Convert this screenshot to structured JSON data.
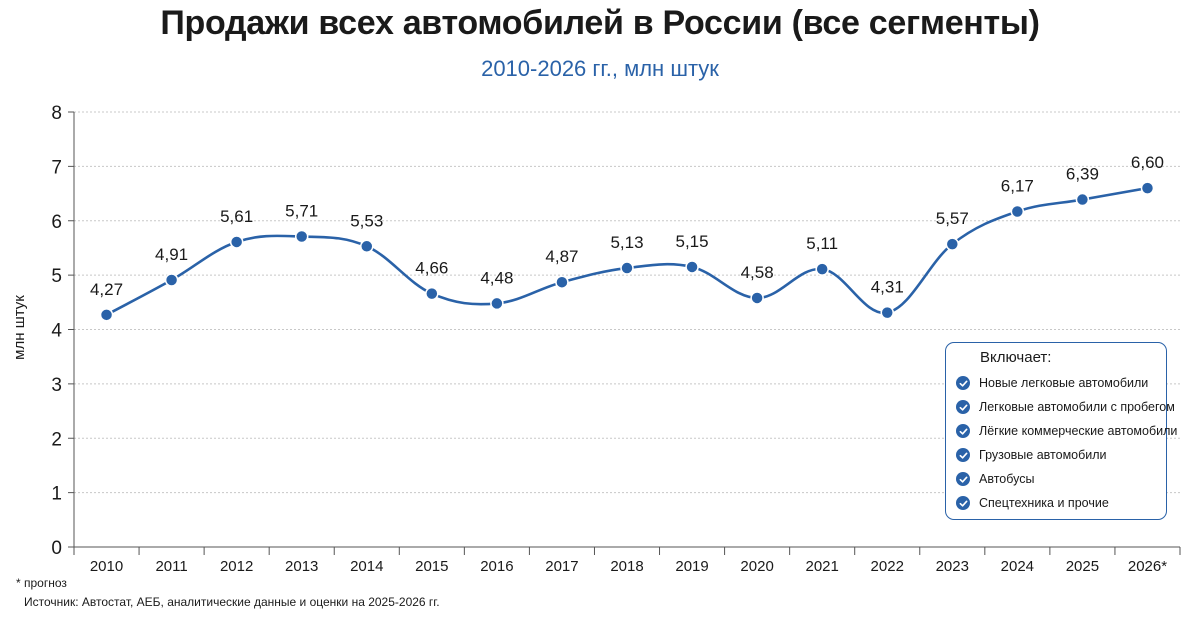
{
  "chart_data": {
    "type": "line",
    "title": "Продажи всех автомобилей в России (все сегменты)",
    "subtitle": "2010-2026 гг., млн штук",
    "ylabel": "млн штук",
    "xlabel": "",
    "ylim": [
      0,
      8
    ],
    "yticks": [
      "0",
      "1",
      "2",
      "3",
      "4",
      "5",
      "6",
      "7",
      "8"
    ],
    "grid": true,
    "categories": [
      "2010",
      "2011",
      "2012",
      "2013",
      "2014",
      "2015",
      "2016",
      "2017",
      "2018",
      "2019",
      "2020",
      "2021",
      "2022",
      "2023",
      "2024",
      "2025",
      "2026*"
    ],
    "values": [
      4.27,
      4.91,
      5.61,
      5.71,
      5.53,
      4.66,
      4.48,
      4.87,
      5.13,
      5.15,
      4.58,
      5.11,
      4.31,
      5.57,
      6.17,
      6.39,
      6.6
    ],
    "labels": [
      "4,27",
      "4,91",
      "5,61",
      "5,71",
      "5,53",
      "4,66",
      "4,48",
      "4,87",
      "5,13",
      "5,15",
      "4,58",
      "5,11",
      "4,31",
      "5,57",
      "6,17",
      "6,39",
      "6,60"
    ],
    "colors": {
      "line": "#2a62a8",
      "marker": "#2a62a8",
      "grid": "#c8c8c8"
    }
  },
  "legend": {
    "title": "Включает:",
    "items": [
      "Новые легковые автомобили",
      "Легковые автомобили с пробегом",
      "Лёгкие коммерческие автомобили",
      "Грузовые автомобили",
      "Автобусы",
      "Спецтехника и прочие"
    ],
    "icon": "check-circle-icon"
  },
  "footnote": "* прогноз",
  "source": "Источник: Автостат, АЕБ, аналитические данные и оценки на 2025-2026 гг."
}
